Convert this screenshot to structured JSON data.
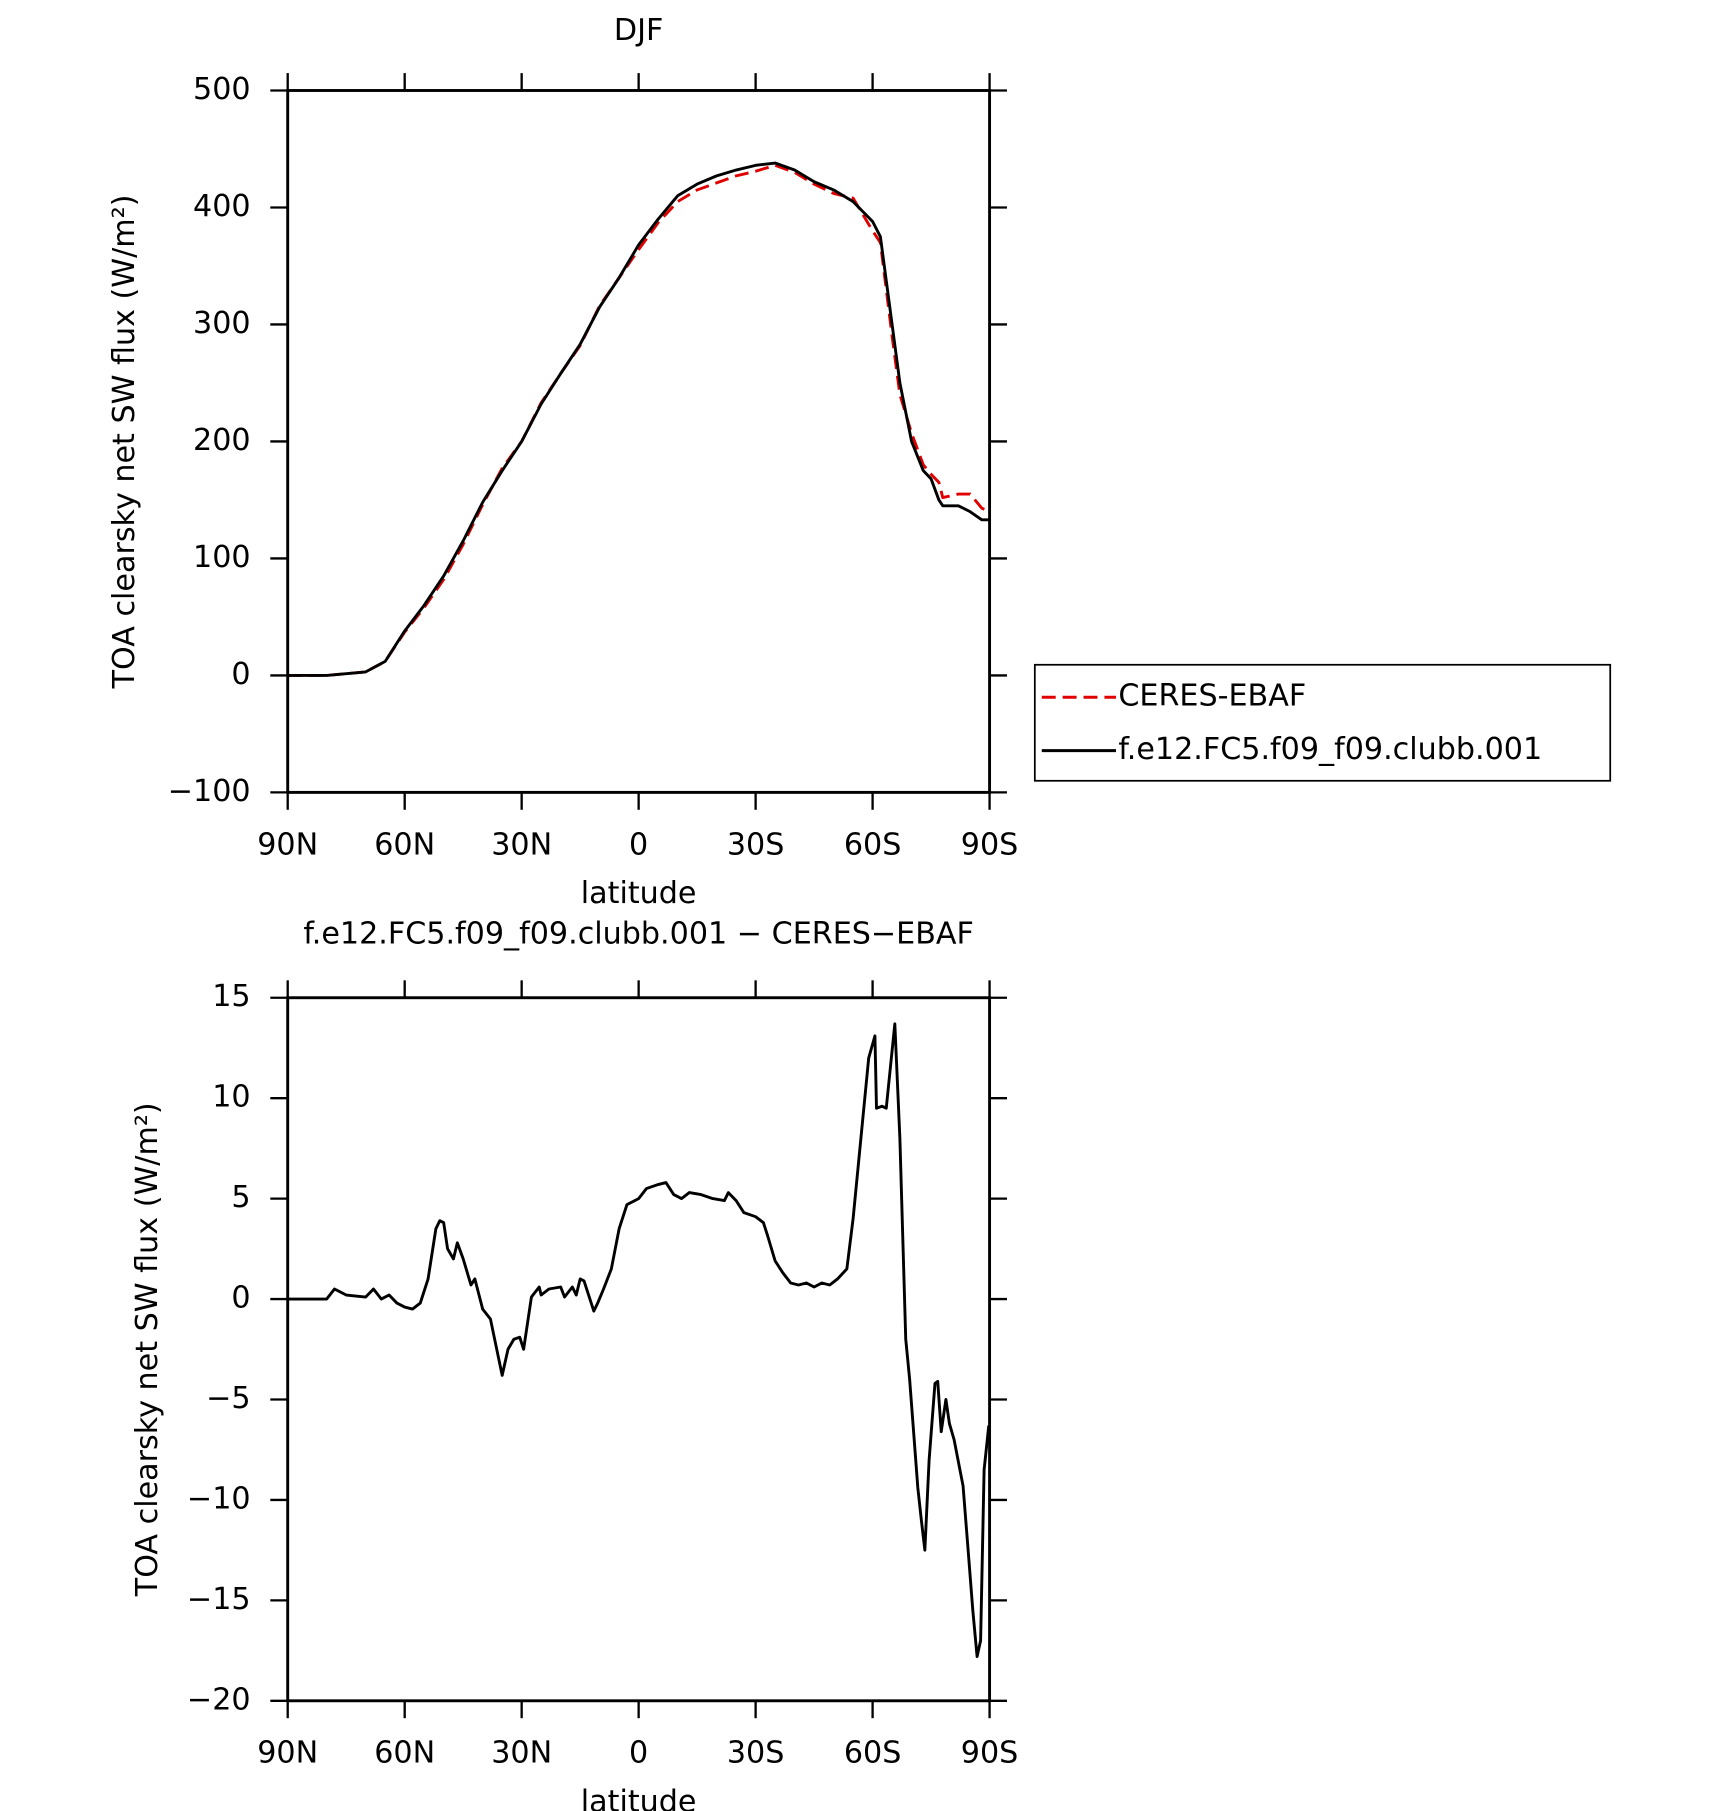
{
  "chart_data": [
    {
      "type": "line",
      "title": "DJF",
      "xlabel": "latitude",
      "ylabel": "TOA clearsky net SW flux (W/m²)",
      "x": [
        90,
        80,
        70,
        65,
        60,
        55,
        50,
        45,
        40,
        35,
        30,
        25,
        20,
        15,
        10,
        5,
        0,
        -5,
        -10,
        -15,
        -20,
        -25,
        -30,
        -35,
        -40,
        -45,
        -50,
        -55,
        -60,
        -62,
        -65,
        -67,
        -70,
        -73,
        -75,
        -77,
        -78,
        -82,
        -85,
        -88,
        -90
      ],
      "series": [
        {
          "name": "CERES-EBAF",
          "color": "#e00000",
          "dash": true,
          "values": [
            0,
            0,
            3,
            12,
            37,
            58,
            82,
            112,
            146,
            177,
            200,
            233,
            258,
            282,
            316,
            340,
            364,
            387,
            405,
            415,
            421,
            427,
            431,
            436,
            430,
            420,
            412,
            408,
            380,
            370,
            290,
            240,
            207,
            180,
            172,
            165,
            152,
            155,
            155,
            143,
            140
          ]
        },
        {
          "name": "f.e12.FC5.f09_f09.clubb.001",
          "color": "#000000",
          "dash": false,
          "values": [
            0,
            0,
            3,
            12,
            38,
            60,
            85,
            115,
            148,
            175,
            200,
            232,
            258,
            283,
            315,
            340,
            368,
            390,
            410,
            420,
            427,
            432,
            436,
            438,
            432,
            422,
            415,
            405,
            388,
            375,
            300,
            250,
            200,
            175,
            168,
            150,
            145,
            145,
            140,
            133,
            133
          ]
        }
      ],
      "xlim": [
        90,
        -90
      ],
      "xticks": [
        {
          "value": 90,
          "label": "90N"
        },
        {
          "value": 60,
          "label": "60N"
        },
        {
          "value": 30,
          "label": "30N"
        },
        0,
        {
          "value": -30,
          "label": "30S"
        },
        {
          "value": -60,
          "label": "60S"
        },
        {
          "value": -90,
          "label": "90S"
        }
      ],
      "ylim": [
        -100,
        500
      ],
      "yticks": [
        {
          "value": -100,
          "label": "−100"
        },
        0,
        100,
        200,
        300,
        400,
        500
      ],
      "legend": "right"
    },
    {
      "type": "line",
      "title": "f.e12.FC5.f09_f09.clubb.001 − CERES−EBAF",
      "xlabel": "latitude",
      "ylabel": "TOA clearsky net SW flux (W/m²)",
      "x": [
        90,
        80,
        78,
        75,
        70,
        68,
        66,
        64,
        62,
        60,
        58,
        56,
        54,
        52,
        51,
        50,
        49,
        47.5,
        46.5,
        45,
        43,
        42,
        40,
        38,
        35,
        33.5,
        32,
        30.5,
        29.5,
        27.5,
        25.5,
        25,
        23,
        20,
        19,
        17,
        16,
        15,
        14,
        11.5,
        10.5,
        9,
        7,
        5,
        3,
        0,
        -2,
        -5,
        -7,
        -9,
        -11,
        -13,
        -16,
        -19,
        -22,
        -23,
        -25,
        -27,
        -30,
        -32,
        -33,
        -35,
        -37,
        -39,
        -41,
        -43,
        -45,
        -47,
        -49,
        -51,
        -53.4,
        -55,
        -57,
        -59,
        -60.6,
        -61,
        -62.4,
        -63.5,
        -65.7,
        -67,
        -68.5,
        -69.5,
        -71.6,
        -72.5,
        -73.4,
        -74.5,
        -76,
        -76.7,
        -77.6,
        -78.8,
        -79.7,
        -80.9,
        -83.2,
        -84.7,
        -85.7,
        -86.8,
        -87.7,
        -88.6,
        -89.8
      ],
      "series": [
        {
          "color": "#000000",
          "dash": false,
          "values": [
            0,
            0,
            0.5,
            0.2,
            0.1,
            0.5,
            0,
            0.2,
            -0.2,
            -0.4,
            -0.5,
            -0.2,
            1,
            3.5,
            3.9,
            3.8,
            2.5,
            2.0,
            2.8,
            2,
            0.7,
            1,
            -0.5,
            -1,
            -3.8,
            -2.5,
            -2,
            -1.9,
            -2.5,
            0.1,
            0.6,
            0.2,
            0.5,
            0.6,
            0.1,
            0.6,
            0.2,
            1,
            0.9,
            -0.6,
            -0.2,
            0.5,
            1.5,
            3.5,
            4.7,
            5.0,
            5.5,
            5.7,
            5.8,
            5.2,
            5.0,
            5.3,
            5.2,
            5.0,
            4.9,
            5.3,
            4.9,
            4.3,
            4.1,
            3.8,
            3.2,
            1.9,
            1.3,
            0.8,
            0.7,
            0.8,
            0.6,
            0.8,
            0.7,
            1.0,
            1.5,
            4,
            8,
            12,
            13.1,
            9.5,
            9.6,
            9.5,
            13.7,
            8,
            -2,
            -4,
            -9.4,
            -11,
            -12.5,
            -8,
            -4.2,
            -4.1,
            -6.6,
            -5,
            -6.2,
            -7,
            -9.3,
            -13,
            -15.5,
            -17.8,
            -17,
            -8.5,
            -6.3
          ]
        }
      ],
      "xlim": [
        90,
        -90
      ],
      "xticks": [
        {
          "value": 90,
          "label": "90N"
        },
        {
          "value": 60,
          "label": "60N"
        },
        {
          "value": 30,
          "label": "30N"
        },
        0,
        {
          "value": -30,
          "label": "30S"
        },
        {
          "value": -60,
          "label": "60S"
        },
        {
          "value": -90,
          "label": "90S"
        }
      ],
      "ylim": [
        -20,
        15
      ],
      "yticks": [
        {
          "value": -20,
          "label": "−20"
        },
        {
          "value": -15,
          "label": "−15"
        },
        {
          "value": -10,
          "label": "−10"
        },
        {
          "value": -5,
          "label": "−5"
        },
        0,
        5,
        10,
        15
      ]
    }
  ]
}
